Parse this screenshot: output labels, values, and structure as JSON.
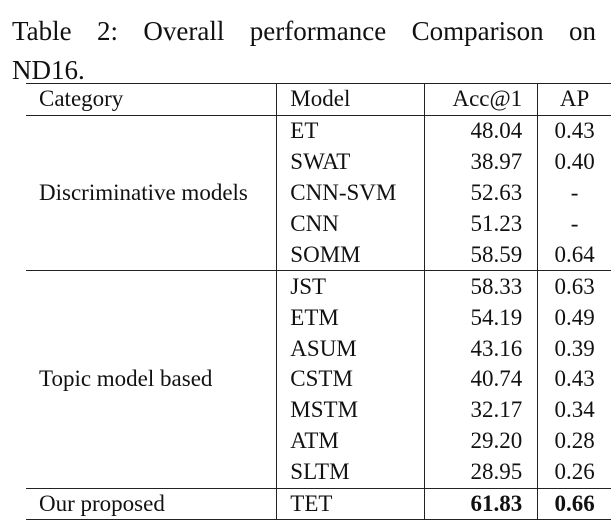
{
  "caption": {
    "line1": "Table 2: Overall performance Comparison on",
    "line2": "ND16."
  },
  "table": {
    "headers": {
      "category": "Category",
      "model": "Model",
      "acc": "Acc@1",
      "ap": "AP"
    },
    "groups": [
      {
        "category": "Discriminative models",
        "rows": [
          {
            "model": "ET",
            "acc": "48.04",
            "ap": "0.43"
          },
          {
            "model": "SWAT",
            "acc": "38.97",
            "ap": "0.40"
          },
          {
            "model": "CNN-SVM",
            "acc": "52.63",
            "ap": "-"
          },
          {
            "model": "CNN",
            "acc": "51.23",
            "ap": "-"
          },
          {
            "model": "SOMM",
            "acc": "58.59",
            "ap": "0.64"
          }
        ]
      },
      {
        "category": "Topic model based",
        "rows": [
          {
            "model": "JST",
            "acc": "58.33",
            "ap": "0.63"
          },
          {
            "model": "ETM",
            "acc": "54.19",
            "ap": "0.49"
          },
          {
            "model": "ASUM",
            "acc": "43.16",
            "ap": "0.39"
          },
          {
            "model": "CSTM",
            "acc": "40.74",
            "ap": "0.43"
          },
          {
            "model": "MSTM",
            "acc": "32.17",
            "ap": "0.34"
          },
          {
            "model": "ATM",
            "acc": "29.20",
            "ap": "0.28"
          },
          {
            "model": "SLTM",
            "acc": "28.95",
            "ap": "0.26"
          }
        ]
      },
      {
        "category": "Our proposed",
        "rows": [
          {
            "model": "TET",
            "acc": "61.83",
            "ap": "0.66",
            "bold_values": true
          }
        ]
      }
    ]
  }
}
